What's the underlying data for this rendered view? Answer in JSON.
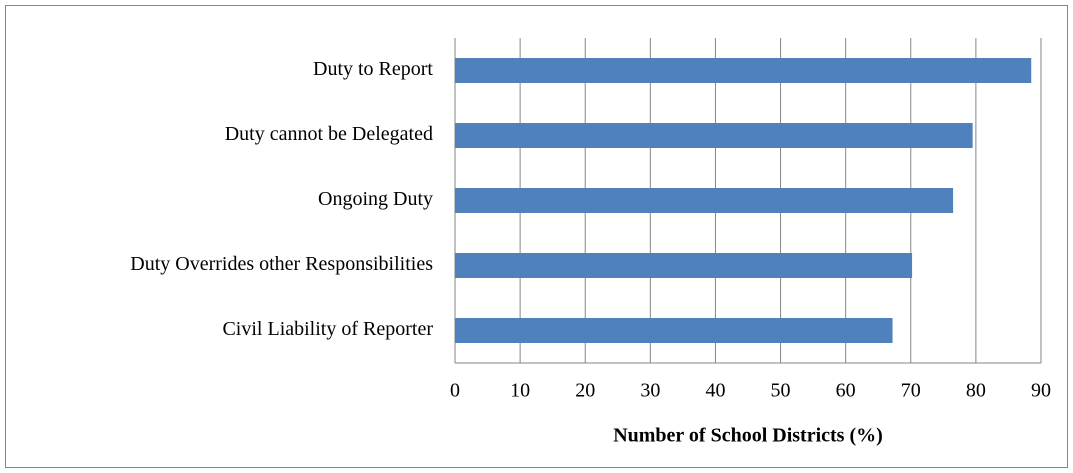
{
  "chart_data": {
    "type": "barh",
    "categories": [
      "Duty to Report",
      "Duty cannot be Delegated",
      "Ongoing Duty",
      "Duty Overrides other Responsibilities",
      "Civil Liability of Reporter"
    ],
    "values": [
      88.5,
      79.5,
      76.5,
      70.2,
      67.2
    ],
    "color": "#4f81bd",
    "x_label": "Number of School Districts (%)",
    "xlim": [
      0,
      90
    ],
    "xticks": [
      0,
      10,
      20,
      30,
      40,
      50,
      60,
      70,
      80,
      90
    ],
    "grid": true
  }
}
